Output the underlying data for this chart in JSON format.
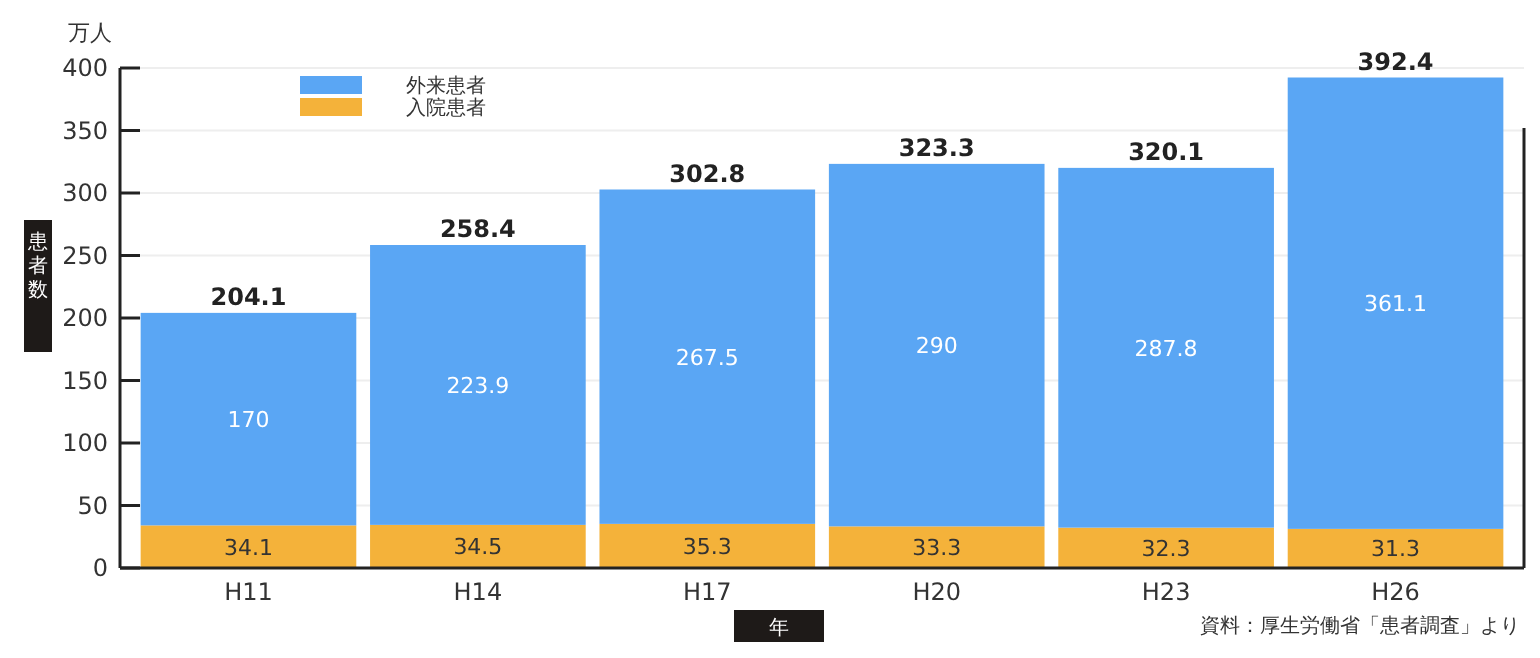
{
  "chart_data": {
    "type": "bar",
    "stacked": true,
    "ylabel": "患者数",
    "xlabel": "年",
    "categories": [
      "H11",
      "H14",
      "H17",
      "H20",
      "H23",
      "H26"
    ],
    "series": [
      {
        "name": "入院患者",
        "color": "#f4b23a",
        "values": [
          34.1,
          34.5,
          35.3,
          33.3,
          32.3,
          31.3
        ]
      },
      {
        "name": "外来患者",
        "color": "#5aa6f4",
        "values": [
          170,
          223.9,
          267.5,
          290,
          287.8,
          361.1
        ]
      }
    ],
    "totals": [
      "204.1",
      "258.4",
      "302.8",
      "323.3",
      "320.1",
      "392.4"
    ],
    "data_labels": true,
    "ylim": [
      0,
      400
    ],
    "yticks": [
      0,
      50,
      100,
      150,
      200,
      250,
      300,
      350,
      400
    ],
    "grid": "y",
    "legend": "top left",
    "annotations": [
      "万人",
      "資料：厚生労働省「患者調査」より"
    ]
  }
}
